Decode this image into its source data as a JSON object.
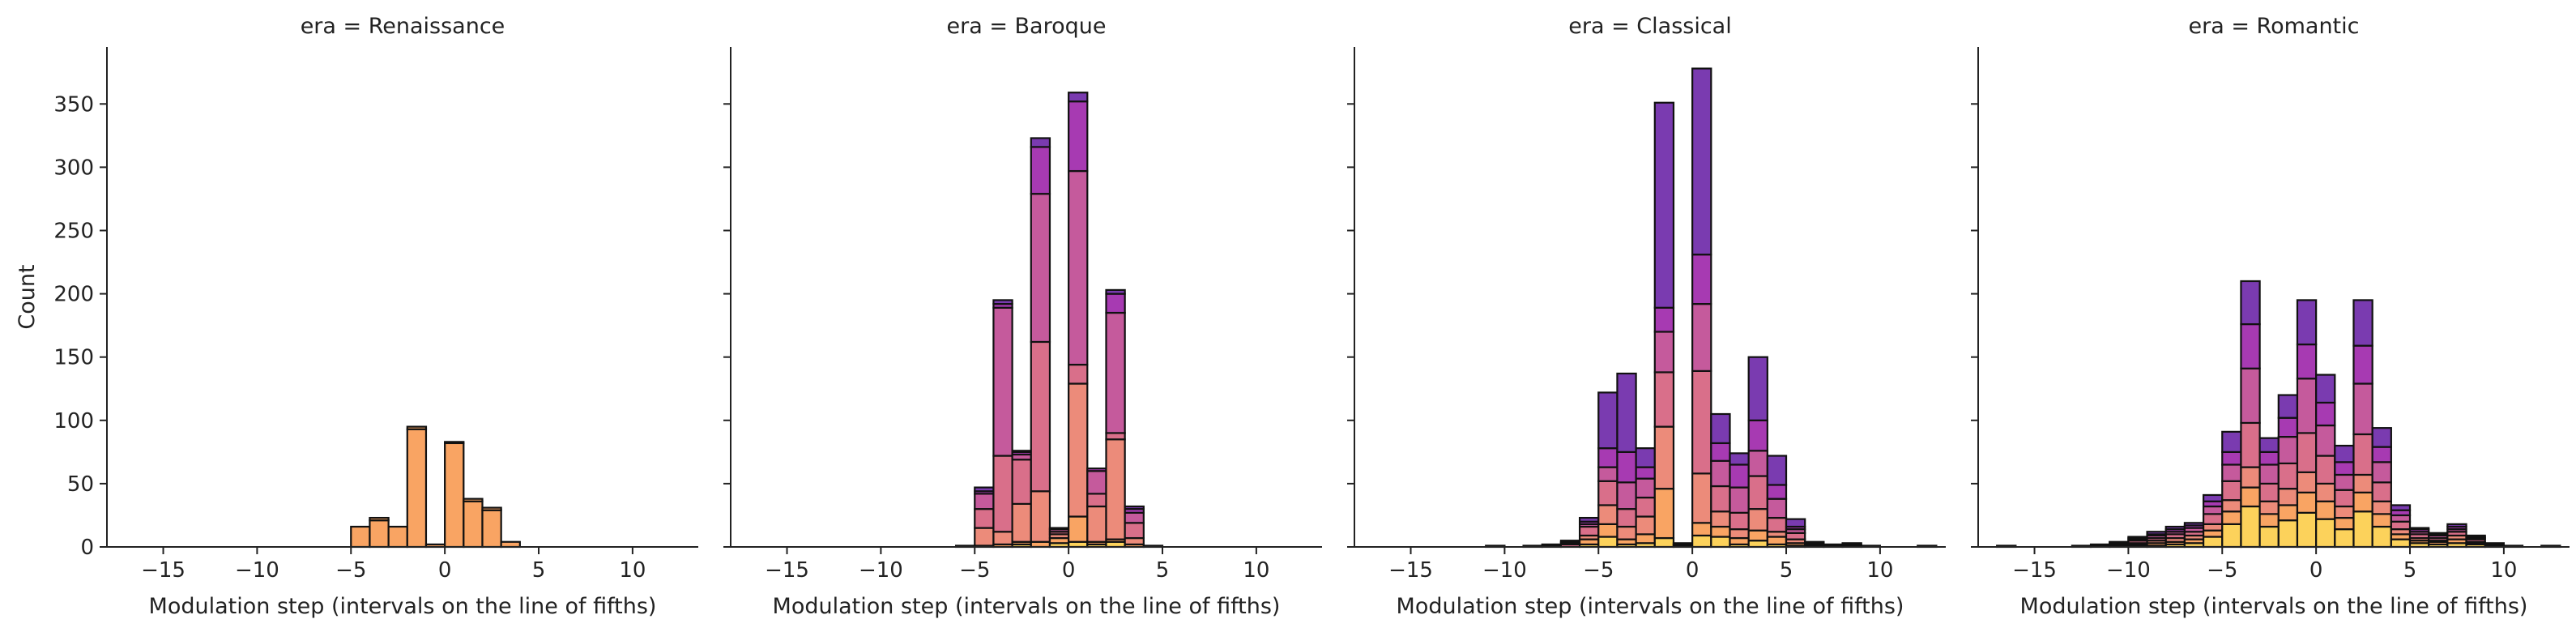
{
  "chart_data": {
    "type": "bar",
    "subtype": "faceted stacked histogram",
    "facet_prefix": "era = ",
    "xlabel": "Modulation step (intervals on the line of fifths)",
    "ylabel": "Count",
    "xlim": [
      -18,
      13.5
    ],
    "ylim": [
      0,
      395
    ],
    "x_ticks": [
      -15,
      -10,
      -5,
      0,
      5,
      10
    ],
    "y_ticks": [
      0,
      50,
      100,
      150,
      200,
      250,
      300,
      350
    ],
    "bin_width": 1,
    "palette": [
      "#fcd25b",
      "#f9a463",
      "#ec8b7a",
      "#d96f8a",
      "#c55a9c",
      "#a73ab2",
      "#7a3bb0"
    ],
    "edge_color": "#111111",
    "panels": [
      {
        "era": "Renaissance",
        "bars": [
          {
            "x": -4.5,
            "total": 16,
            "segments": [
              16,
              0
            ]
          },
          {
            "x": -3.5,
            "total": 23,
            "segments": [
              21,
              2
            ]
          },
          {
            "x": -2.5,
            "total": 16,
            "segments": [
              16,
              0
            ]
          },
          {
            "x": -1.5,
            "total": 95,
            "segments": [
              93,
              2
            ]
          },
          {
            "x": -0.5,
            "total": 2,
            "segments": [
              2,
              0
            ]
          },
          {
            "x": 0.5,
            "total": 83,
            "segments": [
              82,
              1
            ]
          },
          {
            "x": 1.5,
            "total": 38,
            "segments": [
              36,
              2
            ]
          },
          {
            "x": 2.5,
            "total": 31,
            "segments": [
              29,
              2
            ]
          },
          {
            "x": 3.5,
            "total": 4,
            "segments": [
              4,
              0
            ]
          }
        ]
      },
      {
        "era": "Baroque",
        "bars": [
          {
            "x": -5.5,
            "total": 1,
            "segments": [
              0,
              0,
              1,
              0,
              0,
              0,
              0
            ]
          },
          {
            "x": -4.5,
            "total": 47,
            "segments": [
              0,
              1,
              14,
              15,
              12,
              2,
              3
            ]
          },
          {
            "x": -3.5,
            "total": 195,
            "segments": [
              0,
              2,
              10,
              60,
              117,
              3,
              3
            ]
          },
          {
            "x": -2.5,
            "total": 76,
            "segments": [
              2,
              2,
              30,
              35,
              4,
              2,
              1
            ]
          },
          {
            "x": -1.5,
            "total": 323,
            "segments": [
              0,
              4,
              40,
              118,
              117,
              37,
              7
            ]
          },
          {
            "x": -0.5,
            "total": 15,
            "segments": [
              3,
              4,
              3,
              2,
              2,
              1,
              0
            ]
          },
          {
            "x": 0.5,
            "total": 359,
            "segments": [
              4,
              20,
              105,
              15,
              153,
              55,
              7
            ]
          },
          {
            "x": 1.5,
            "total": 62,
            "segments": [
              2,
              2,
              28,
              10,
              18,
              2,
              0
            ]
          },
          {
            "x": 2.5,
            "total": 203,
            "segments": [
              4,
              2,
              79,
              5,
              95,
              15,
              3
            ]
          },
          {
            "x": 3.5,
            "total": 32,
            "segments": [
              0,
              2,
              5,
              12,
              8,
              3,
              2
            ]
          },
          {
            "x": 4.5,
            "total": 1,
            "segments": [
              0,
              0,
              1,
              0,
              0,
              0,
              0
            ]
          }
        ]
      },
      {
        "era": "Classical",
        "bars": [
          {
            "x": -10.5,
            "total": 1,
            "segments": [
              0,
              0,
              0,
              0,
              0,
              0,
              1
            ]
          },
          {
            "x": -8.5,
            "total": 1,
            "segments": [
              0,
              0,
              0,
              0,
              0,
              0,
              1
            ]
          },
          {
            "x": -7.5,
            "total": 2,
            "segments": [
              0,
              0,
              0,
              1,
              0,
              0,
              1
            ]
          },
          {
            "x": -6.5,
            "total": 5,
            "segments": [
              0,
              0,
              0,
              2,
              1,
              1,
              1
            ]
          },
          {
            "x": -5.5,
            "total": 23,
            "segments": [
              2,
              4,
              3,
              7,
              2,
              2,
              3
            ]
          },
          {
            "x": -4.5,
            "total": 122,
            "segments": [
              8,
              10,
              15,
              19,
              11,
              15,
              44
            ]
          },
          {
            "x": -3.5,
            "total": 137,
            "segments": [
              2,
              4,
              10,
              14,
              21,
              24,
              62
            ]
          },
          {
            "x": -2.5,
            "total": 78,
            "segments": [
              3,
              7,
              14,
              15,
              15,
              9,
              15
            ]
          },
          {
            "x": -1.5,
            "total": 351,
            "segments": [
              7,
              39,
              49,
              43,
              32,
              19,
              162
            ]
          },
          {
            "x": -0.5,
            "total": 3,
            "segments": [
              1,
              1,
              0,
              1,
              0,
              0,
              0
            ]
          },
          {
            "x": 0.5,
            "total": 378,
            "segments": [
              9,
              10,
              39,
              81,
              53,
              39,
              147
            ]
          },
          {
            "x": 1.5,
            "total": 105,
            "segments": [
              8,
              8,
              12,
              20,
              20,
              14,
              23
            ]
          },
          {
            "x": 2.5,
            "total": 74,
            "segments": [
              2,
              5,
              7,
              13,
              20,
              18,
              9
            ]
          },
          {
            "x": 3.5,
            "total": 150,
            "segments": [
              5,
              8,
              17,
              26,
              20,
              24,
              50
            ]
          },
          {
            "x": 4.5,
            "total": 72,
            "segments": [
              2,
              6,
              4,
              11,
              15,
              11,
              23
            ]
          },
          {
            "x": 5.5,
            "total": 22,
            "segments": [
              1,
              2,
              3,
              5,
              3,
              2,
              6
            ]
          },
          {
            "x": 6.5,
            "total": 4,
            "segments": [
              0,
              0,
              0,
              1,
              1,
              1,
              1
            ]
          },
          {
            "x": 7.5,
            "total": 2,
            "segments": [
              0,
              0,
              0,
              0,
              1,
              0,
              1
            ]
          },
          {
            "x": 8.5,
            "total": 3,
            "segments": [
              0,
              0,
              0,
              0,
              1,
              1,
              1
            ]
          },
          {
            "x": 9.5,
            "total": 1,
            "segments": [
              0,
              0,
              0,
              0,
              0,
              0,
              1
            ]
          },
          {
            "x": 12.5,
            "total": 1,
            "segments": [
              0,
              0,
              0,
              0,
              0,
              0,
              1
            ]
          }
        ]
      },
      {
        "era": "Romantic",
        "bars": [
          {
            "x": -16.5,
            "total": 1,
            "segments": [
              0,
              0,
              0,
              0,
              0,
              0,
              1
            ]
          },
          {
            "x": -12.5,
            "total": 1,
            "segments": [
              0,
              0,
              0,
              0,
              0,
              0,
              1
            ]
          },
          {
            "x": -11.5,
            "total": 2,
            "segments": [
              0,
              0,
              0,
              1,
              0,
              0,
              1
            ]
          },
          {
            "x": -10.5,
            "total": 4,
            "segments": [
              0,
              0,
              1,
              1,
              1,
              0,
              1
            ]
          },
          {
            "x": -9.5,
            "total": 8,
            "segments": [
              1,
              1,
              1,
              2,
              1,
              1,
              1
            ]
          },
          {
            "x": -8.5,
            "total": 12,
            "segments": [
              1,
              2,
              2,
              2,
              2,
              1,
              2
            ]
          },
          {
            "x": -7.5,
            "total": 16,
            "segments": [
              2,
              2,
              3,
              3,
              2,
              2,
              2
            ]
          },
          {
            "x": -6.5,
            "total": 19,
            "segments": [
              3,
              3,
              3,
              3,
              3,
              2,
              2
            ]
          },
          {
            "x": -5.5,
            "total": 41,
            "segments": [
              8,
              5,
              5,
              8,
              6,
              4,
              5
            ]
          },
          {
            "x": -4.5,
            "total": 91,
            "segments": [
              18,
              10,
              9,
              15,
              13,
              10,
              16
            ]
          },
          {
            "x": -3.5,
            "total": 210,
            "segments": [
              32,
              15,
              16,
              35,
              43,
              35,
              34
            ]
          },
          {
            "x": -2.5,
            "total": 86,
            "segments": [
              16,
              10,
              10,
              14,
              15,
              10,
              11
            ]
          },
          {
            "x": -1.5,
            "total": 120,
            "segments": [
              21,
              12,
              13,
              20,
              21,
              15,
              18
            ]
          },
          {
            "x": -0.5,
            "total": 195,
            "segments": [
              27,
              16,
              16,
              31,
              43,
              27,
              35
            ]
          },
          {
            "x": 0.5,
            "total": 136,
            "segments": [
              22,
              14,
              14,
              22,
              24,
              18,
              22
            ]
          },
          {
            "x": 1.5,
            "total": 80,
            "segments": [
              14,
              9,
              9,
              13,
              12,
              10,
              13
            ]
          },
          {
            "x": 2.5,
            "total": 195,
            "segments": [
              28,
              15,
              14,
              32,
              40,
              30,
              36
            ]
          },
          {
            "x": 3.5,
            "total": 94,
            "segments": [
              16,
              10,
              10,
              15,
              16,
              12,
              15
            ]
          },
          {
            "x": 4.5,
            "total": 33,
            "segments": [
              6,
              4,
              4,
              6,
              5,
              4,
              4
            ]
          },
          {
            "x": 5.5,
            "total": 15,
            "segments": [
              3,
              2,
              2,
              3,
              2,
              2,
              1
            ]
          },
          {
            "x": 6.5,
            "total": 11,
            "segments": [
              2,
              2,
              1,
              2,
              2,
              1,
              1
            ]
          },
          {
            "x": 7.5,
            "total": 18,
            "segments": [
              3,
              3,
              3,
              3,
              2,
              2,
              2
            ]
          },
          {
            "x": 8.5,
            "total": 9,
            "segments": [
              2,
              1,
              1,
              2,
              1,
              1,
              1
            ]
          },
          {
            "x": 9.5,
            "total": 3,
            "segments": [
              1,
              0,
              1,
              0,
              0,
              0,
              1
            ]
          },
          {
            "x": 10.5,
            "total": 1,
            "segments": [
              0,
              0,
              0,
              0,
              0,
              0,
              1
            ]
          },
          {
            "x": 12.5,
            "total": 1,
            "segments": [
              0,
              0,
              0,
              0,
              0,
              0,
              1
            ]
          }
        ]
      }
    ]
  }
}
